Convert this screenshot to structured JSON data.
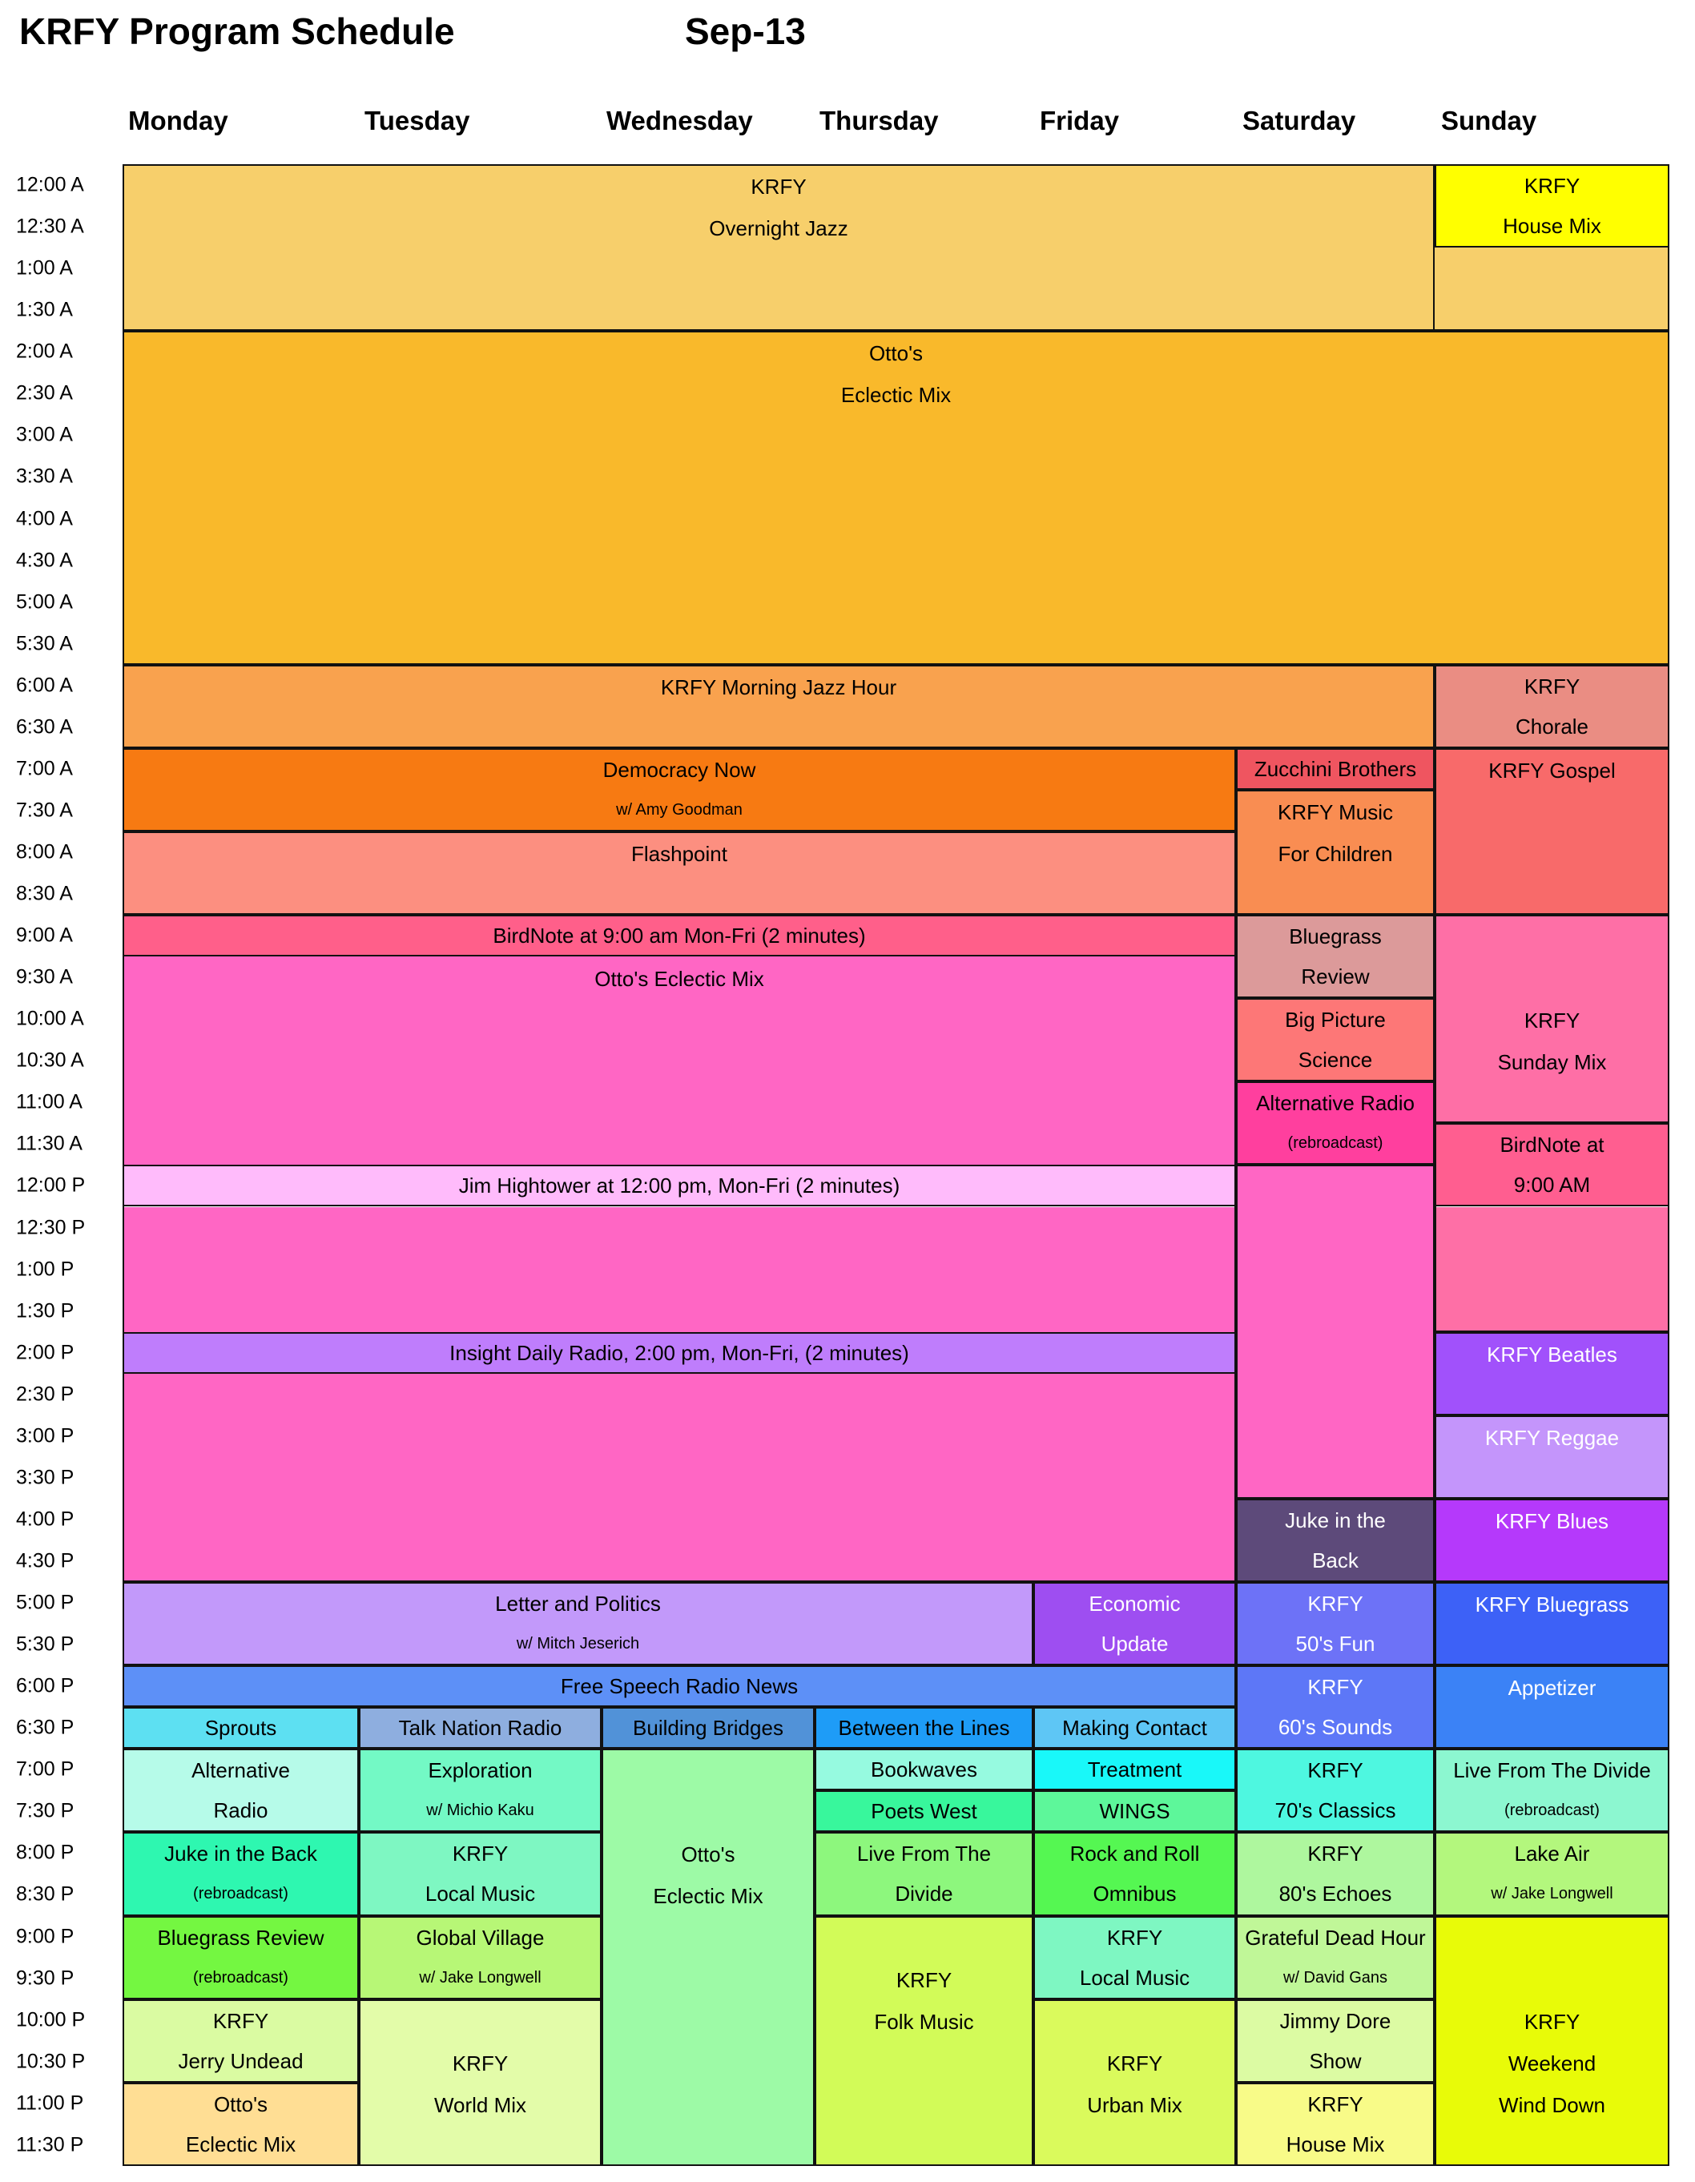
{
  "header": {
    "title": "KRFY Program Schedule",
    "date": "Sep-13"
  },
  "days": [
    "Monday",
    "Tuesday",
    "Wednesday",
    "Thursday",
    "Friday",
    "Saturday",
    "Sunday"
  ],
  "times": [
    "12:00 A",
    "12:30 A",
    "1:00 A",
    "1:30 A",
    "2:00 A",
    "2:30 A",
    "3:00 A",
    "3:30 A",
    "4:00 A",
    "4:30 A",
    "5:00 A",
    "5:30 A",
    "6:00 A",
    "6:30 A",
    "7:00 A",
    "7:30 A",
    "8:00 A",
    "8:30 A",
    "9:00 A",
    "9:30 A",
    "10:00 A",
    "10:30 A",
    "11:00 A",
    "11:30 A",
    "12:00 P",
    "12:30 P",
    "1:00 P",
    "1:30 P",
    "2:00 P",
    "2:30 P",
    "3:00 P",
    "3:30 P",
    "4:00 P",
    "4:30 P",
    "5:00 P",
    "5:30 P",
    "6:00 P",
    "6:30 P",
    "7:00 P",
    "7:30 P",
    "8:00 P",
    "8:30 P",
    "9:00 P",
    "9:30 P",
    "10:00 P",
    "10:30 P",
    "11:00 P",
    "11:30 P"
  ],
  "programs": [
    {
      "days": "Mon-Sat",
      "start": "12:00 A",
      "end": "2:00 A",
      "color": "#f7cf6b",
      "lines": [
        "KRFY",
        "Overnight Jazz"
      ]
    },
    {
      "days": "Sun",
      "start": "12:00 A",
      "end": "1:00 A",
      "color": "#ffff00",
      "lines": [
        "KRFY",
        "House Mix"
      ]
    },
    {
      "days": "Sun",
      "start": "1:00 A",
      "end": "2:00 A",
      "color": "#f7cf6b",
      "lines": []
    },
    {
      "days": "Mon-Sun",
      "start": "2:00 A",
      "end": "6:00 A",
      "color": "#f9b92b",
      "lines": [
        "Otto's",
        "Eclectic Mix"
      ]
    },
    {
      "days": "Mon-Sat",
      "start": "6:00 A",
      "end": "7:00 A",
      "color": "#f9a24e",
      "lines": [
        "KRFY Morning Jazz Hour"
      ]
    },
    {
      "days": "Sun",
      "start": "6:00 A",
      "end": "7:00 A",
      "color": "#ea8d83",
      "lines": [
        "KRFY",
        "Chorale"
      ]
    },
    {
      "days": "Mon-Fri",
      "start": "7:00 A",
      "end": "8:00 A",
      "color": "#f77a12",
      "lines": [
        "Democracy Now",
        "w/ Amy Goodman"
      ]
    },
    {
      "days": "Mon-Fri",
      "start": "8:00 A",
      "end": "9:00 A",
      "color": "#fc8f80",
      "lines": [
        "Flashpoint"
      ]
    },
    {
      "days": "Sat",
      "start": "7:00 A",
      "end": "7:30 A",
      "color": "#ef5560",
      "lines": [
        "Zucchini Brothers"
      ]
    },
    {
      "days": "Sat",
      "start": "7:30 A",
      "end": "9:00 A",
      "color": "#f98d52",
      "lines": [
        "KRFY Music",
        "For Children"
      ]
    },
    {
      "days": "Sun",
      "start": "7:00 A",
      "end": "9:00 A",
      "color": "#f86a6a",
      "lines": [
        "KRFY Gospel"
      ]
    },
    {
      "days": "Mon-Fri",
      "start": "9:00 A",
      "end": "9:30 A",
      "color": "#ff5f8a",
      "lines": [
        "BirdNote at 9:00 am Mon-Fri (2 minutes)"
      ]
    },
    {
      "days": "Mon-Fri",
      "start": "9:30 A",
      "end": "12:00 P",
      "color": "#ff66c4",
      "lines": [
        "Otto's Eclectic Mix"
      ]
    },
    {
      "days": "Sat",
      "start": "9:00 A",
      "end": "10:00 A",
      "color": "#dc9a9a",
      "lines": [
        "Bluegrass",
        "Review"
      ]
    },
    {
      "days": "Sat",
      "start": "10:00 A",
      "end": "11:00 A",
      "color": "#fd7777",
      "lines": [
        "Big Picture",
        "Science"
      ]
    },
    {
      "days": "Sat",
      "start": "11:00 A",
      "end": "12:00 P",
      "color": "#ff3f9e",
      "lines": [
        "Alternative Radio",
        "(rebroadcast)"
      ]
    },
    {
      "days": "Sun",
      "start": "9:00 A",
      "end": "11:30 A",
      "color": "#fe6fa6",
      "lines": [
        "",
        "",
        "KRFY",
        "Sunday Mix"
      ]
    },
    {
      "days": "Sun",
      "start": "11:30 A",
      "end": "12:30 P",
      "color": "#ff5e90",
      "lines": [
        "BirdNote at",
        "9:00 AM"
      ]
    },
    {
      "days": "Sun",
      "start": "12:30 P",
      "end": "2:00 P",
      "color": "#fe6fa6",
      "lines": []
    },
    {
      "days": "Mon-Fri",
      "start": "12:00 P",
      "end": "12:30 P",
      "color": "#ffbbfb",
      "lines": [
        "Jim Hightower at 12:00 pm, Mon-Fri (2 minutes)"
      ]
    },
    {
      "days": "Mon-Fri",
      "start": "12:30 P",
      "end": "2:00 P",
      "color": "#ff66c4",
      "lines": []
    },
    {
      "days": "Mon-Fri",
      "start": "2:00 P",
      "end": "2:30 P",
      "color": "#bf7dfc",
      "lines": [
        "Insight Daily Radio, 2:00 pm, Mon-Fri, (2 minutes)"
      ]
    },
    {
      "days": "Mon-Fri",
      "start": "2:30 P",
      "end": "5:00 P",
      "color": "#ff66c4",
      "lines": []
    },
    {
      "days": "Sat",
      "start": "12:00 P",
      "end": "4:00 P",
      "color": "#ff66c4",
      "lines": []
    },
    {
      "days": "Sat",
      "start": "4:00 P",
      "end": "5:00 P",
      "color": "#5d4a7a",
      "lines": [
        "Juke in the",
        "Back"
      ],
      "light": true
    },
    {
      "days": "Sun",
      "start": "2:00 P",
      "end": "3:00 P",
      "color": "#a151fb",
      "lines": [
        "KRFY  Beatles"
      ],
      "light": true
    },
    {
      "days": "Sun",
      "start": "3:00 P",
      "end": "4:00 P",
      "color": "#c495fb",
      "lines": [
        "KRFY Reggae"
      ],
      "light": true
    },
    {
      "days": "Sun",
      "start": "4:00 P",
      "end": "5:00 P",
      "color": "#b539fb",
      "lines": [
        "KRFY Blues"
      ],
      "light": true
    },
    {
      "days": "Mon-Thu",
      "start": "5:00 P",
      "end": "6:00 P",
      "color": "#c299fa",
      "lines": [
        "Letter and Politics",
        "w/ Mitch Jeserich"
      ]
    },
    {
      "days": "Fri",
      "start": "5:00 P",
      "end": "6:00 P",
      "color": "#9e4ef1",
      "lines": [
        "Economic",
        "Update"
      ],
      "light": true
    },
    {
      "days": "Sat",
      "start": "5:00 P",
      "end": "6:00 P",
      "color": "#6d72f7",
      "lines": [
        "KRFY",
        "50's Fun"
      ],
      "light": true
    },
    {
      "days": "Sun",
      "start": "5:00 P",
      "end": "6:00 P",
      "color": "#3d61f7",
      "lines": [
        "KRFY Bluegrass"
      ],
      "light": true
    },
    {
      "days": "Mon-Fri",
      "start": "6:00 P",
      "end": "6:30 P",
      "color": "#5d90f7",
      "lines": [
        "Free Speech Radio News"
      ]
    },
    {
      "days": "Sat",
      "start": "6:00 P",
      "end": "7:00 P",
      "color": "#5d77f7",
      "lines": [
        "KRFY",
        "60's Sounds"
      ],
      "light": true
    },
    {
      "days": "Sun",
      "start": "6:00 P",
      "end": "7:00 P",
      "color": "#3b82f6",
      "lines": [
        "Appetizer"
      ],
      "light": true
    },
    {
      "days": "Mon",
      "start": "6:30 P",
      "end": "7:00 P",
      "color": "#5de0f2",
      "lines": [
        "Sprouts"
      ]
    },
    {
      "days": "Tue",
      "start": "6:30 P",
      "end": "7:00 P",
      "color": "#8eaedf",
      "lines": [
        "Talk Nation Radio"
      ]
    },
    {
      "days": "Wed",
      "start": "6:30 P",
      "end": "7:00 P",
      "color": "#5192d8",
      "lines": [
        "Building Bridges"
      ]
    },
    {
      "days": "Thu",
      "start": "6:30 P",
      "end": "7:00 P",
      "color": "#1e9cf7",
      "lines": [
        "Between the Lines"
      ]
    },
    {
      "days": "Fri",
      "start": "6:30 P",
      "end": "7:00 P",
      "color": "#5ec6f5",
      "lines": [
        "Making Contact"
      ]
    },
    {
      "days": "Mon",
      "start": "7:00 P",
      "end": "8:00 P",
      "color": "#b6fbe9",
      "lines": [
        "Alternative",
        "Radio"
      ]
    },
    {
      "days": "Tue",
      "start": "7:00 P",
      "end": "8:00 P",
      "color": "#73f9c5",
      "lines": [
        "Exploration",
        "w/ Michio Kaku"
      ]
    },
    {
      "days": "Wed",
      "start": "7:00 P",
      "end": "12:00 A",
      "color": "#9dfaa6",
      "lines": [
        "",
        "",
        "Otto's",
        "Eclectic Mix"
      ]
    },
    {
      "days": "Thu",
      "start": "7:00 P",
      "end": "7:30 P",
      "color": "#96fae0",
      "lines": [
        "Bookwaves"
      ]
    },
    {
      "days": "Thu",
      "start": "7:30 P",
      "end": "8:00 P",
      "color": "#38f79c",
      "lines": [
        "Poets West"
      ]
    },
    {
      "days": "Fri",
      "start": "7:00 P",
      "end": "7:30 P",
      "color": "#19f8f9",
      "lines": [
        "Treatment"
      ]
    },
    {
      "days": "Fri",
      "start": "7:30 P",
      "end": "8:00 P",
      "color": "#5df79a",
      "lines": [
        "WINGS"
      ]
    },
    {
      "days": "Sat",
      "start": "7:00 P",
      "end": "8:00 P",
      "color": "#4ef7e0",
      "lines": [
        "KRFY",
        "70's Classics"
      ]
    },
    {
      "days": "Sun",
      "start": "7:00 P",
      "end": "8:00 P",
      "color": "#8cf7d0",
      "lines": [
        "Live From The Divide",
        "(rebroadcast)"
      ]
    },
    {
      "days": "Mon",
      "start": "8:00 P",
      "end": "9:00 P",
      "color": "#2ef7b0",
      "lines": [
        "Juke in the Back",
        "(rebroadcast)"
      ]
    },
    {
      "days": "Tue",
      "start": "8:00 P",
      "end": "9:00 P",
      "color": "#7ef7c2",
      "lines": [
        "KRFY",
        "Local Music"
      ]
    },
    {
      "days": "Thu",
      "start": "8:00 P",
      "end": "9:00 P",
      "color": "#8df77d",
      "lines": [
        "Live From The",
        "Divide"
      ]
    },
    {
      "days": "Fri",
      "start": "8:00 P",
      "end": "9:00 P",
      "color": "#55f752",
      "lines": [
        "Rock and Roll",
        "Omnibus"
      ]
    },
    {
      "days": "Sat",
      "start": "8:00 P",
      "end": "9:00 P",
      "color": "#aef79e",
      "lines": [
        "KRFY",
        "80's Echoes"
      ]
    },
    {
      "days": "Sun",
      "start": "8:00 P",
      "end": "9:00 P",
      "color": "#b3f77d",
      "lines": [
        "Lake Air",
        "w/ Jake Longwell"
      ]
    },
    {
      "days": "Mon",
      "start": "9:00 P",
      "end": "10:00 P",
      "color": "#74f741",
      "lines": [
        "Bluegrass Review",
        "(rebroadcast)"
      ]
    },
    {
      "days": "Tue",
      "start": "9:00 P",
      "end": "10:00 P",
      "color": "#b7f776",
      "lines": [
        "Global Village",
        "w/ Jake Longwell"
      ]
    },
    {
      "days": "Thu",
      "start": "9:00 P",
      "end": "12:00 A",
      "color": "#d2fb58",
      "lines": [
        "",
        "KRFY",
        "Folk Music"
      ]
    },
    {
      "days": "Fri",
      "start": "9:00 P",
      "end": "10:00 P",
      "color": "#7ef7c2",
      "lines": [
        "KRFY",
        "Local Music"
      ]
    },
    {
      "days": "Sat",
      "start": "9:00 P",
      "end": "10:00 P",
      "color": "#c0f798",
      "lines": [
        "Grateful Dead Hour",
        "w/ David Gans"
      ]
    },
    {
      "days": "Sun",
      "start": "9:00 P",
      "end": "12:00 A",
      "color": "#e8fb08",
      "lines": [
        "",
        "",
        "KRFY",
        "Weekend",
        "Wind Down"
      ]
    },
    {
      "days": "Mon",
      "start": "10:00 P",
      "end": "11:00 P",
      "color": "#dafba2",
      "lines": [
        "KRFY",
        "Jerry Undead"
      ]
    },
    {
      "days": "Mon",
      "start": "11:00 P",
      "end": "12:00 A",
      "color": "#ffde94",
      "lines": [
        "Otto's",
        "Eclectic Mix"
      ]
    },
    {
      "days": "Tue",
      "start": "10:00 P",
      "end": "12:00 A",
      "color": "#e3fca9",
      "lines": [
        "",
        "KRFY",
        "World Mix"
      ]
    },
    {
      "days": "Fri",
      "start": "10:00 P",
      "end": "12:00 A",
      "color": "#dafa5c",
      "lines": [
        "",
        "KRFY",
        "Urban Mix"
      ]
    },
    {
      "days": "Sat",
      "start": "10:00 P",
      "end": "11:00 P",
      "color": "#dcfba3",
      "lines": [
        "Jimmy Dore",
        "Show"
      ]
    },
    {
      "days": "Sat",
      "start": "11:00 P",
      "end": "12:00 A",
      "color": "#f8fb88",
      "lines": [
        "KRFY",
        "House Mix"
      ]
    }
  ]
}
